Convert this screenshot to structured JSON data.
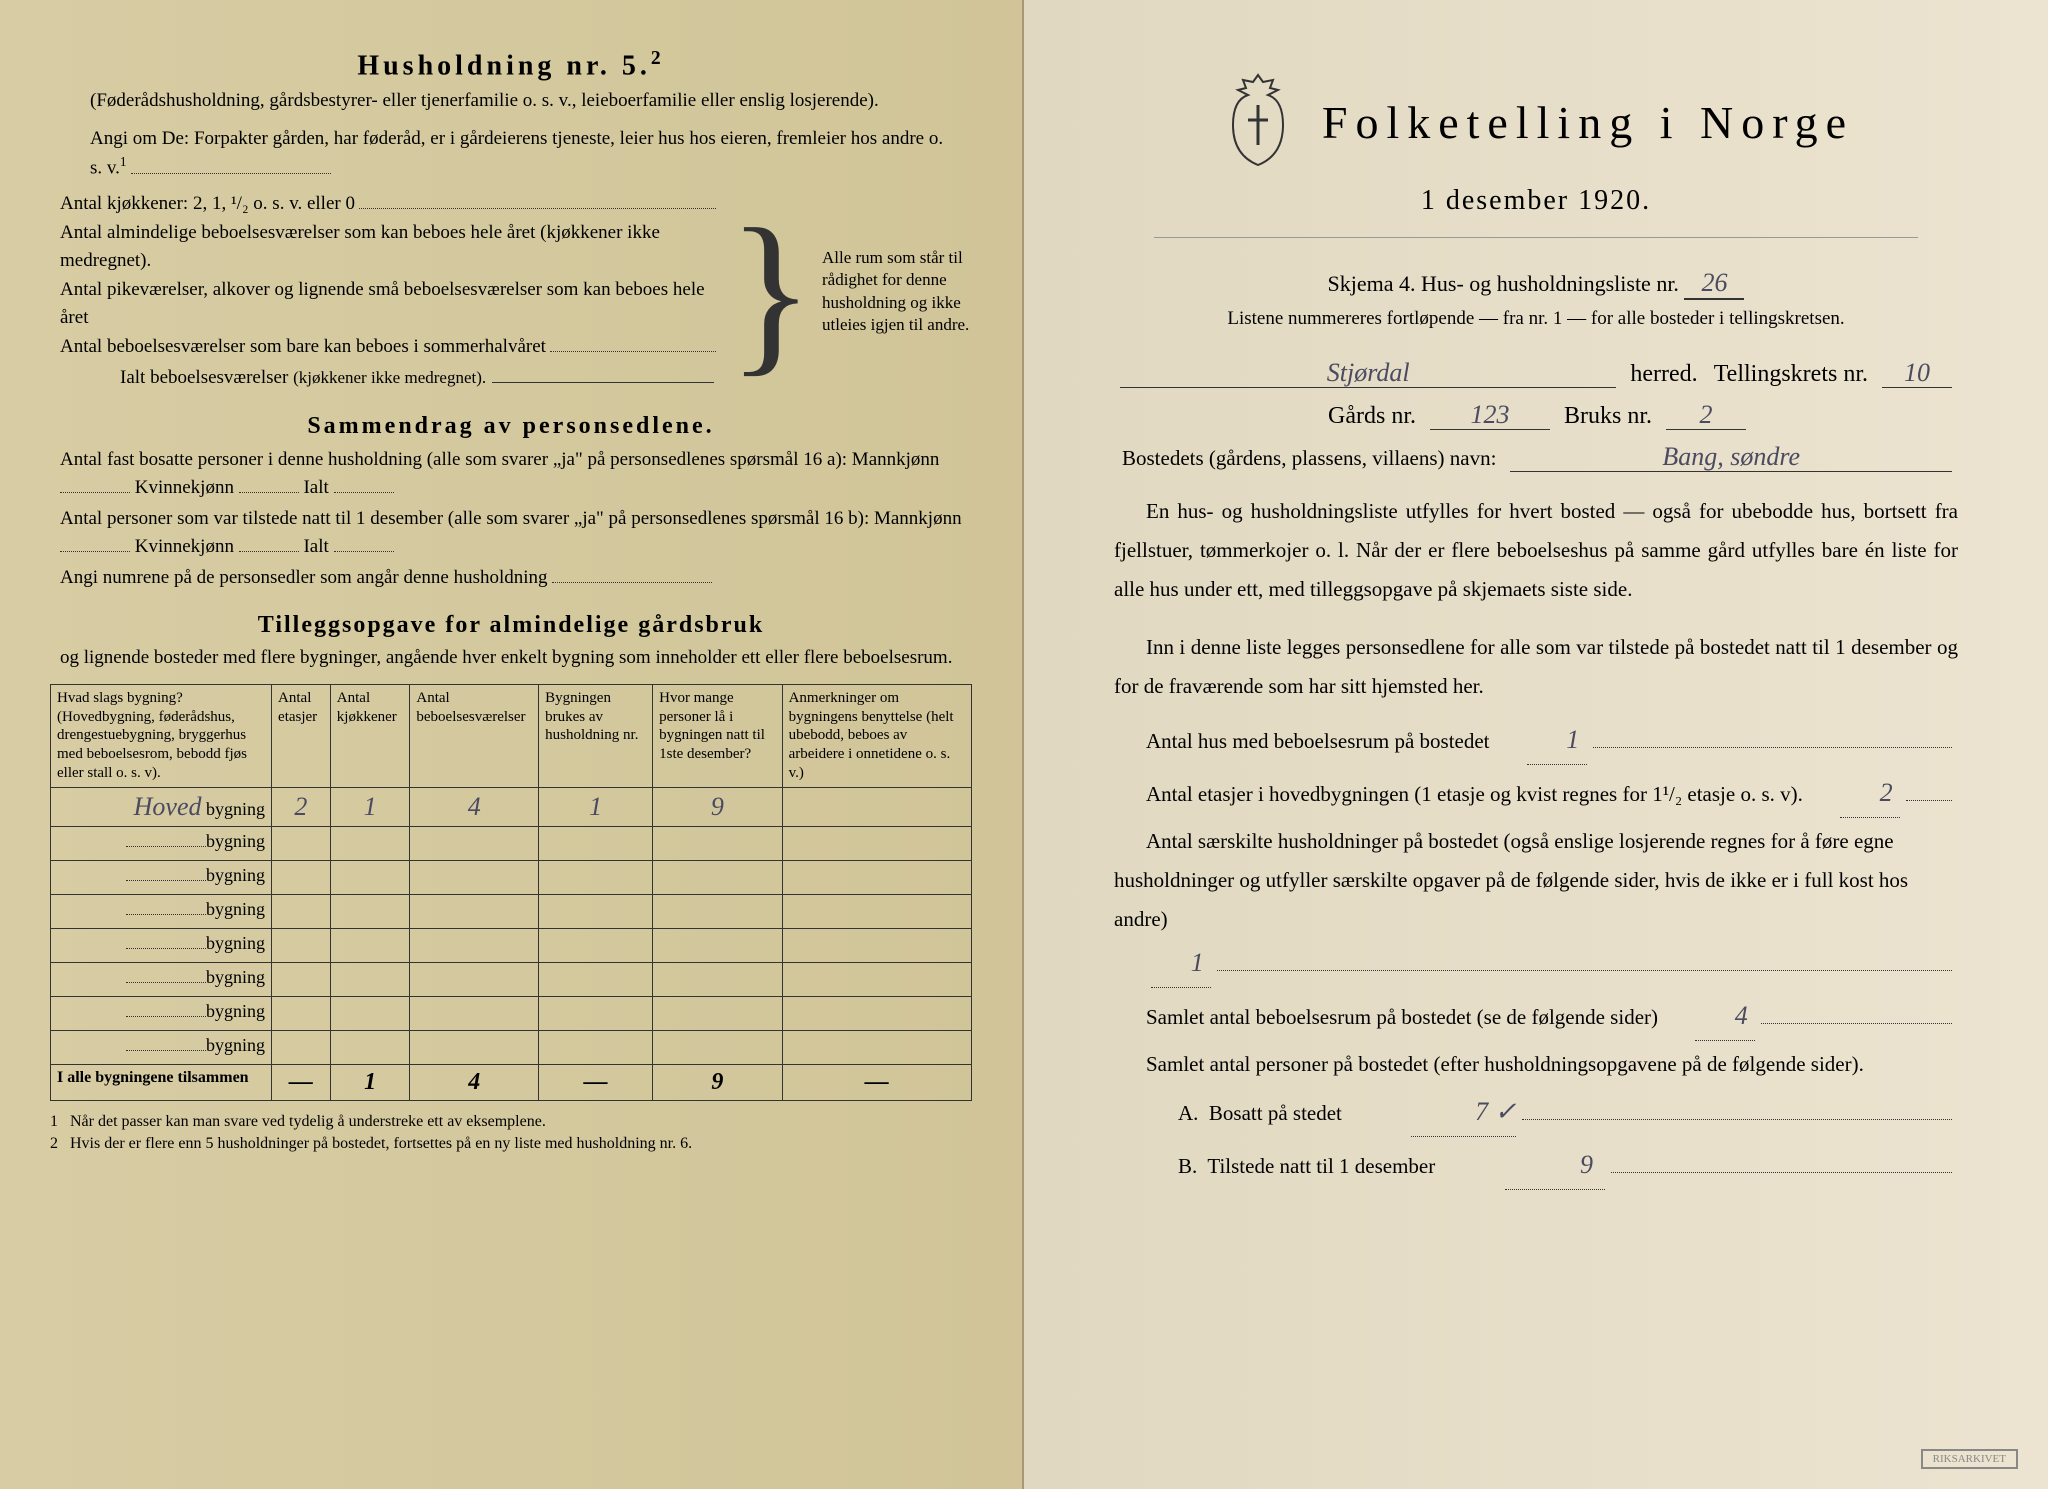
{
  "left": {
    "heading": "Husholdning nr. 5.",
    "heading_sup": "2",
    "sub1": "(Føderådshusholdning, gårdsbestyrer- eller tjenerfamilie o. s. v., leieboerfamilie eller enslig losjerende).",
    "sub2": "Angi om De: Forpakter gården, har føderåd, er i gårdeierens tjeneste, leier hus hos eieren, fremleier hos andre o. s. v.",
    "sub2_sup": "1",
    "kjokken_label": "Antal kjøkkener: 2, 1, ¹/₂ o. s. v. eller 0",
    "rooms": {
      "r1": "Antal almindelige beboelsesværelser som kan beboes hele året (kjøkkener ikke medregnet).",
      "r2": "Antal pikeværelser, alkover og lignende små beboelsesværelser som kan beboes hele året",
      "r3": "Antal beboelsesværelser som bare kan beboes i sommerhalvåret",
      "ialt": "Ialt beboelsesværelser",
      "ialt_paren": "(kjøkkener ikke medregnet).",
      "brace_text": "Alle rum som står til rådighet for denne husholdning og ikke utleies igjen til andre."
    },
    "sammendrag": {
      "title": "Sammendrag av personsedlene.",
      "l1a": "Antal fast bosatte personer i denne husholdning (alle som svarer „ja\" på personsedlenes spørsmål 16 a): Mannkjønn",
      "kv": "Kvinnekjønn",
      "ialt": "Ialt",
      "l2a": "Antal personer som var tilstede natt til 1 desember (alle som svarer „ja\" på personsedlenes spørsmål 16 b): Mannkjønn",
      "l3": "Angi numrene på de personsedler som angår denne husholdning"
    },
    "tillegg": {
      "title": "Tilleggsopgave for almindelige gårdsbruk",
      "sub": "og lignende bosteder med flere bygninger, angående hver enkelt bygning som inneholder ett eller flere beboelsesrum.",
      "headers": [
        "Hvad slags bygning?\n(Hovedbygning, føderådshus, drengestuebygning, bryggerhus med beboelsesrom, bebodd fjøs eller stall o. s. v).",
        "Antal etasjer",
        "Antal kjøkkener",
        "Antal beboelsesværelser",
        "Bygningen brukes av husholdning nr.",
        "Hvor mange personer lå i bygningen natt til 1ste desember?",
        "Anmerkninger om bygningens benyttelse (helt ubebodd, beboes av arbeidere i onnetidene o. s. v.)"
      ],
      "rows": [
        {
          "name": "Hoved",
          "suffix": "bygning",
          "vals": [
            "2",
            "1",
            "4",
            "1",
            "9",
            ""
          ]
        },
        {
          "name": "",
          "suffix": "bygning",
          "vals": [
            "",
            "",
            "",
            "",
            "",
            ""
          ]
        },
        {
          "name": "",
          "suffix": "bygning",
          "vals": [
            "",
            "",
            "",
            "",
            "",
            ""
          ]
        },
        {
          "name": "",
          "suffix": "bygning",
          "vals": [
            "",
            "",
            "",
            "",
            "",
            ""
          ]
        },
        {
          "name": "",
          "suffix": "bygning",
          "vals": [
            "",
            "",
            "",
            "",
            "",
            ""
          ]
        },
        {
          "name": "",
          "suffix": "bygning",
          "vals": [
            "",
            "",
            "",
            "",
            "",
            ""
          ]
        },
        {
          "name": "",
          "suffix": "bygning",
          "vals": [
            "",
            "",
            "",
            "",
            "",
            ""
          ]
        },
        {
          "name": "",
          "suffix": "bygning",
          "vals": [
            "",
            "",
            "",
            "",
            "",
            ""
          ]
        }
      ],
      "total_label": "I alle bygningene tilsammen",
      "total_vals": [
        "—",
        "1",
        "4",
        "—",
        "9",
        "—"
      ]
    },
    "footnotes": {
      "f1": "Når det passer kan man svare ved tydelig å understreke ett av eksemplene.",
      "f2": "Hvis der er flere enn 5 husholdninger på bostedet, fortsettes på en ny liste med husholdning nr. 6."
    }
  },
  "right": {
    "title": "Folketelling i Norge",
    "date": "1 desember 1920.",
    "skjema": "Skjema 4.  Hus- og husholdningsliste nr.",
    "skjema_nr": "26",
    "listnote": "Listene nummereres fortløpende — fra nr. 1 — for alle bosteder i tellingskretsen.",
    "herred_value": "Stjørdal",
    "herred_label": "herred.",
    "krets_label": "Tellingskrets nr.",
    "krets_nr": "10",
    "gard_label": "Gårds nr.",
    "gard_nr": "123",
    "bruk_label": "Bruks nr.",
    "bruk_nr": "2",
    "bosted_label": "Bostedets (gårdens, plassens, villaens) navn:",
    "bosted_value": "Bang, søndre",
    "para1": "En hus- og husholdningsliste utfylles for hvert bosted — også for ubebodde hus, bortsett fra fjellstuer, tømmerkojer o. l.  Når der er flere beboelseshus på samme gård utfylles bare én liste for alle hus under ett, med tilleggsopgave på skjemaets siste side.",
    "para2": "Inn i denne liste legges personsedlene for alle som var tilstede på bostedet natt til 1 desember og for de fraværende som har sitt hjemsted her.",
    "q_hus": "Antal hus med beboelsesrum på bostedet",
    "q_hus_val": "1",
    "q_etasjer": "Antal etasjer i hovedbygningen (1 etasje og kvist regnes for 1¹/₂ etasje o. s. v).",
    "q_etasjer_val": "2",
    "q_hush": "Antal særskilte husholdninger på bostedet (også enslige losjerende regnes for å føre egne husholdninger og utfyller særskilte opgaver på de følgende sider, hvis de ikke er i full kost hos andre)",
    "q_hush_val": "1",
    "q_rum": "Samlet antal beboelsesrum på bostedet (se de følgende sider)",
    "q_rum_val": "4",
    "q_pers": "Samlet antal personer på bostedet (efter husholdningsopgavene på de følgende sider).",
    "q_a": "A.  Bosatt på stedet",
    "q_a_val": "7 ✓",
    "q_b": "B.  Tilstede natt til 1 desember",
    "q_b_val": "9",
    "stamp": "RIKSARKIVET"
  },
  "colors": {
    "text": "#1a1a1a",
    "hand": "#4a4a60",
    "left_bg": "#d4c8a0",
    "right_bg": "#e8e0c8"
  }
}
